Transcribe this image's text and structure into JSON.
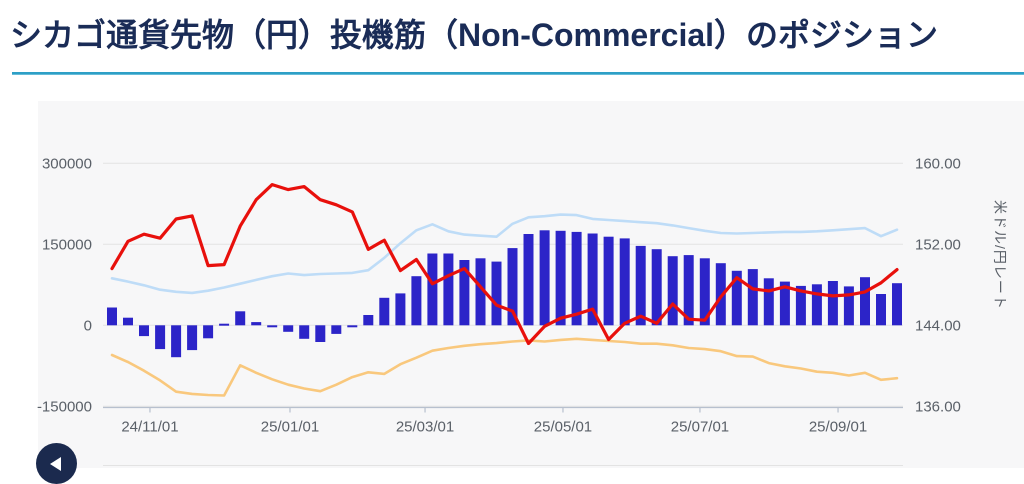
{
  "page": {
    "title": "シカゴ通貨先物（円）投機筋（Non-Commercial）のポジション"
  },
  "nav": {
    "back_icon": "left-triangle"
  },
  "chart_data": {
    "type": "bar",
    "title": "シカゴ通貨先物（円）投機筋（Non-Commercial）のポジション",
    "n_points": 50,
    "series": [
      {
        "name": "net-position-bars",
        "type": "bar",
        "axis": "left",
        "color": "#2c24c8",
        "values": [
          33000,
          14000,
          -20000,
          -44000,
          -59000,
          -46000,
          -24000,
          3000,
          26000,
          6000,
          -1000,
          -12000,
          -25000,
          -31000,
          -16000,
          -1000,
          19000,
          51000,
          59000,
          91000,
          133000,
          133000,
          121000,
          124000,
          118000,
          143000,
          169000,
          176000,
          175000,
          173000,
          170000,
          164000,
          161000,
          147000,
          141000,
          128000,
          130000,
          124000,
          115000,
          101000,
          104000,
          87000,
          81000,
          73000,
          76000,
          82000,
          72000,
          89000,
          58000,
          78000
        ]
      },
      {
        "name": "long-position-line",
        "type": "line",
        "axis": "left",
        "color": "#bedcf7",
        "values": [
          87000,
          81000,
          74000,
          66000,
          62000,
          60000,
          64000,
          70000,
          77000,
          84000,
          91000,
          96000,
          93000,
          95000,
          96000,
          97000,
          102000,
          125000,
          152000,
          176000,
          187000,
          174000,
          168000,
          166000,
          164000,
          188000,
          200000,
          202000,
          205000,
          204000,
          197000,
          195000,
          193000,
          191000,
          189000,
          185000,
          180000,
          175000,
          171000,
          170000,
          171000,
          172000,
          173000,
          173000,
          174000,
          176000,
          178000,
          180000,
          165000,
          177000
        ]
      },
      {
        "name": "short-position-line",
        "type": "line",
        "axis": "left",
        "color": "#f9c87d",
        "values": [
          -55000,
          -68000,
          -84000,
          -102000,
          -123000,
          -127000,
          -129000,
          -130000,
          -74000,
          -88000,
          -100000,
          -110000,
          -117000,
          -122000,
          -110000,
          -96000,
          -87000,
          -90000,
          -72000,
          -60000,
          -47000,
          -42000,
          -38000,
          -35000,
          -33000,
          -30000,
          -28000,
          -30000,
          -27000,
          -25000,
          -27000,
          -29000,
          -31000,
          -34000,
          -34000,
          -37000,
          -42000,
          -44000,
          -48000,
          -57000,
          -58000,
          -70000,
          -76000,
          -80000,
          -86000,
          -88000,
          -93000,
          -88000,
          -101000,
          -98000
        ]
      },
      {
        "name": "usdjpy-rate-line",
        "type": "line",
        "axis": "right",
        "color": "#e8100c",
        "values": [
          149.6,
          152.3,
          153.0,
          152.6,
          154.5,
          154.8,
          149.9,
          150.0,
          153.8,
          156.4,
          157.9,
          157.4,
          157.7,
          156.4,
          155.9,
          155.2,
          151.5,
          152.4,
          149.4,
          150.5,
          148.1,
          148.9,
          149.6,
          147.8,
          146.0,
          145.4,
          142.2,
          143.9,
          144.7,
          145.1,
          145.6,
          142.6,
          144.2,
          144.9,
          144.2,
          146.1,
          144.6,
          144.5,
          146.8,
          148.7,
          147.6,
          147.4,
          147.8,
          147.4,
          147.1,
          146.9,
          147.0,
          147.3,
          148.2,
          149.5
        ]
      }
    ],
    "left_axis": {
      "ticks": [
        300000,
        150000,
        0,
        -150000
      ],
      "labels": [
        "300000",
        "150000",
        "0",
        "-150000"
      ]
    },
    "right_axis": {
      "ticks": [
        160,
        152,
        144,
        136
      ],
      "labels": [
        "160.00",
        "152.00",
        "144.00",
        "136.00"
      ],
      "title": "米ドル/円レート"
    },
    "x_axis": {
      "tick_labels": [
        "24/11/01",
        "25/01/01",
        "25/03/01",
        "25/05/01",
        "25/07/01",
        "25/09/01"
      ],
      "tick_indices": [
        2.37,
        11.11,
        19.54,
        28.15,
        36.7,
        45.32
      ]
    },
    "grid": true,
    "legend": "none"
  },
  "colors": {
    "title": "#1a2c57",
    "underline": "#2d9fc6",
    "panel_bg": "#f7f7f8",
    "gridline": "#e3e3e3",
    "axis_line": "#b7c0ce",
    "axis_text": "#5a6068",
    "back_button_bg": "#1b2a4e"
  }
}
